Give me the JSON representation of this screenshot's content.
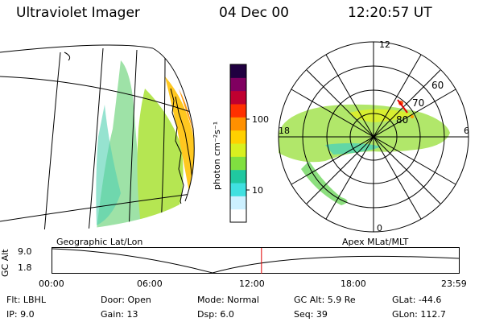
{
  "header": {
    "title": "Ultraviolet Imager",
    "date": "04 Dec 00",
    "time": "12:20:57 UT"
  },
  "colorbar": {
    "unit_label": "photon cm⁻²s⁻¹",
    "ticks": [
      "100",
      "10"
    ],
    "colors": [
      "#ffffff",
      "#ccf0ff",
      "#40e0e0",
      "#20c8a0",
      "#80e040",
      "#d8f020",
      "#ffd000",
      "#ff9000",
      "#ff3000",
      "#c00030",
      "#800060",
      "#200040"
    ]
  },
  "polar": {
    "mlt_labels": {
      "top": "12",
      "left": "18",
      "right": "6",
      "bottom": "0"
    },
    "lat_labels": [
      "60",
      "70",
      "80"
    ]
  },
  "panel_labels": {
    "left": "Geographic Lat/Lon",
    "right": "Apex MLat/MLT"
  },
  "altitude_plot": {
    "ylabel": "GC Alt",
    "yticks": [
      "9.0",
      "1.8"
    ],
    "xticks": [
      "00:00",
      "06:00",
      "12:00",
      "18:00",
      "23:59"
    ],
    "current_time_fraction": 0.5145
  },
  "info": {
    "flt": "Flt: LBHL",
    "ip": "IP:  9.0",
    "door": "Door: Open",
    "gain": "Gain: 13",
    "mode": "Mode: Normal",
    "dsp": "Dsp:     6.0",
    "gcalt": "GC Alt: 5.9 Re",
    "seq": "Seq: 39",
    "glat": "GLat: -44.6",
    "glon": "GLon: 112.7"
  }
}
